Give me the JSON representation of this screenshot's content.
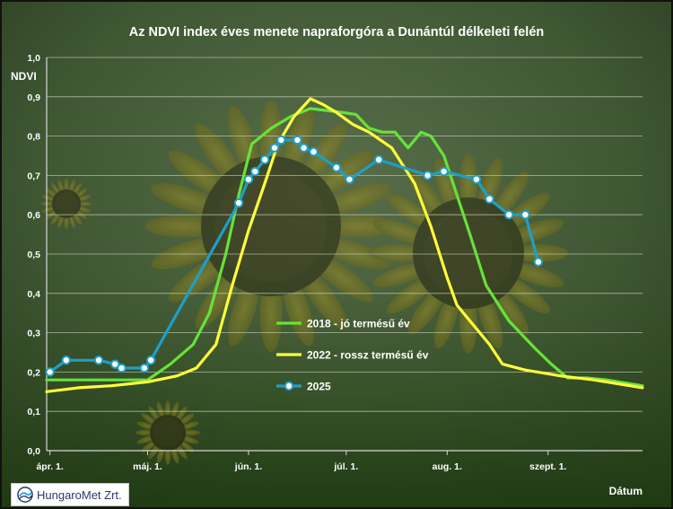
{
  "chart_data": {
    "type": "line",
    "title": "Az NDVI index éves menete napraforgóra a Dunántúl délkeleti felén",
    "ylabel": "NDVI",
    "xlabel": "Dátum",
    "ylim": [
      0,
      1
    ],
    "yticks": [
      "0,0",
      "0,1",
      "0,2",
      "0,3",
      "0,4",
      "0,5",
      "0,6",
      "0,7",
      "0,8",
      "0,9",
      "1,0"
    ],
    "xlim": [
      "2025-03-31",
      "2025-09-30"
    ],
    "xticks": [
      {
        "date": "2025-04-01",
        "label": "ápr. 1."
      },
      {
        "date": "2025-05-01",
        "label": "máj. 1."
      },
      {
        "date": "2025-06-01",
        "label": "jún. 1."
      },
      {
        "date": "2025-07-01",
        "label": "júl. 1."
      },
      {
        "date": "2025-08-01",
        "label": "aug. 1."
      },
      {
        "date": "2025-09-01",
        "label": "szept. 1."
      }
    ],
    "grid": true,
    "legend_position": "center",
    "series": [
      {
        "name": "2018 - jó termésű év",
        "color": "#66e23a",
        "marker": "none",
        "points": [
          [
            "2025-03-31",
            0.18
          ],
          [
            "2025-04-10",
            0.18
          ],
          [
            "2025-04-20",
            0.18
          ],
          [
            "2025-05-01",
            0.18
          ],
          [
            "2025-05-08",
            0.22
          ],
          [
            "2025-05-15",
            0.27
          ],
          [
            "2025-05-20",
            0.35
          ],
          [
            "2025-05-25",
            0.5
          ],
          [
            "2025-05-29",
            0.65
          ],
          [
            "2025-06-02",
            0.78
          ],
          [
            "2025-06-08",
            0.82
          ],
          [
            "2025-06-14",
            0.85
          ],
          [
            "2025-06-20",
            0.87
          ],
          [
            "2025-06-25",
            0.865
          ],
          [
            "2025-06-30",
            0.86
          ],
          [
            "2025-07-04",
            0.855
          ],
          [
            "2025-07-08",
            0.82
          ],
          [
            "2025-07-12",
            0.81
          ],
          [
            "2025-07-16",
            0.81
          ],
          [
            "2025-07-20",
            0.77
          ],
          [
            "2025-07-24",
            0.81
          ],
          [
            "2025-07-27",
            0.8
          ],
          [
            "2025-07-31",
            0.75
          ],
          [
            "2025-08-04",
            0.65
          ],
          [
            "2025-08-08",
            0.55
          ],
          [
            "2025-08-13",
            0.42
          ],
          [
            "2025-08-20",
            0.33
          ],
          [
            "2025-08-28",
            0.26
          ],
          [
            "2025-09-02",
            0.22
          ],
          [
            "2025-09-07",
            0.185
          ],
          [
            "2025-09-13",
            0.185
          ],
          [
            "2025-09-19",
            0.18
          ],
          [
            "2025-09-30",
            0.165
          ]
        ]
      },
      {
        "name": "2022 - rossz termésű év",
        "color": "#ffff3a",
        "marker": "none",
        "points": [
          [
            "2025-03-31",
            0.15
          ],
          [
            "2025-04-10",
            0.16
          ],
          [
            "2025-04-20",
            0.165
          ],
          [
            "2025-05-01",
            0.175
          ],
          [
            "2025-05-10",
            0.19
          ],
          [
            "2025-05-16",
            0.21
          ],
          [
            "2025-05-22",
            0.27
          ],
          [
            "2025-05-27",
            0.42
          ],
          [
            "2025-06-01",
            0.56
          ],
          [
            "2025-06-06",
            0.68
          ],
          [
            "2025-06-10",
            0.78
          ],
          [
            "2025-06-15",
            0.85
          ],
          [
            "2025-06-20",
            0.895
          ],
          [
            "2025-06-24",
            0.88
          ],
          [
            "2025-06-28",
            0.86
          ],
          [
            "2025-07-03",
            0.83
          ],
          [
            "2025-07-08",
            0.81
          ],
          [
            "2025-07-15",
            0.77
          ],
          [
            "2025-07-22",
            0.68
          ],
          [
            "2025-07-27",
            0.57
          ],
          [
            "2025-08-01",
            0.44
          ],
          [
            "2025-08-04",
            0.37
          ],
          [
            "2025-08-09",
            0.32
          ],
          [
            "2025-08-14",
            0.27
          ],
          [
            "2025-08-18",
            0.22
          ],
          [
            "2025-08-25",
            0.205
          ],
          [
            "2025-09-05",
            0.19
          ],
          [
            "2025-09-15",
            0.18
          ],
          [
            "2025-09-30",
            0.16
          ]
        ]
      },
      {
        "name": "2025",
        "color": "#1e9fc8",
        "marker": "circle",
        "points": [
          [
            "2025-04-01",
            0.2
          ],
          [
            "2025-04-06",
            0.23
          ],
          [
            "2025-04-16",
            0.23
          ],
          [
            "2025-04-21",
            0.22
          ],
          [
            "2025-04-23",
            0.21
          ],
          [
            "2025-04-30",
            0.21
          ],
          [
            "2025-05-02",
            0.23
          ],
          [
            "2025-05-29",
            0.63
          ],
          [
            "2025-06-01",
            0.69
          ],
          [
            "2025-06-03",
            0.71
          ],
          [
            "2025-06-06",
            0.74
          ],
          [
            "2025-06-09",
            0.77
          ],
          [
            "2025-06-11",
            0.79
          ],
          [
            "2025-06-16",
            0.79
          ],
          [
            "2025-06-18",
            0.77
          ],
          [
            "2025-06-21",
            0.76
          ],
          [
            "2025-06-28",
            0.72
          ],
          [
            "2025-07-02",
            0.69
          ],
          [
            "2025-07-11",
            0.74
          ],
          [
            "2025-07-26",
            0.7
          ],
          [
            "2025-07-31",
            0.71
          ],
          [
            "2025-08-10",
            0.69
          ],
          [
            "2025-08-14",
            0.64
          ],
          [
            "2025-08-20",
            0.6
          ],
          [
            "2025-08-25",
            0.6
          ],
          [
            "2025-08-29",
            0.48
          ]
        ]
      }
    ]
  },
  "logo": {
    "text": "HungaroMet Zrt."
  }
}
